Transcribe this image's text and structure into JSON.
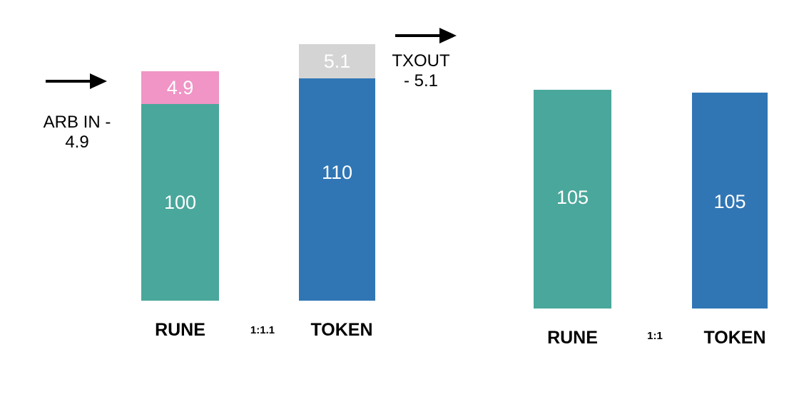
{
  "colors": {
    "rune": "#4aa79b",
    "token": "#3076b5",
    "arb_in": "#f095c6",
    "tx_out": "#d4d4d4"
  },
  "icons": {
    "arb_in_arrow": "arrow-right-icon",
    "tx_out_arrow": "arrow-right-icon"
  },
  "before": {
    "rune": {
      "value": "100",
      "added": "4.9",
      "label": "RUNE"
    },
    "token": {
      "value": "110",
      "removed": "5.1",
      "label": "TOKEN"
    },
    "ratio": "1:1.1"
  },
  "after": {
    "rune": {
      "value": "105",
      "label": "RUNE"
    },
    "token": {
      "value": "105",
      "label": "TOKEN"
    },
    "ratio": "1:1"
  },
  "annotations": {
    "arb_in_line1": "ARB IN -",
    "arb_in_line2": "4.9",
    "tx_out_line1": "TXOUT",
    "tx_out_line2": "- 5.1"
  }
}
